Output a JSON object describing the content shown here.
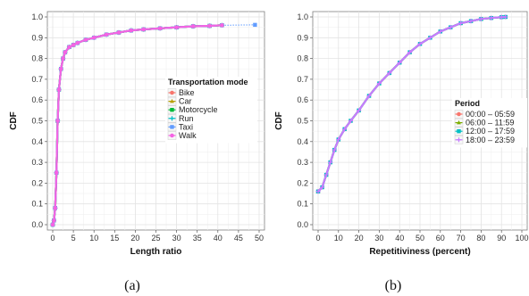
{
  "captions": [
    "(a)",
    "(b)"
  ],
  "chart_data": [
    {
      "type": "line",
      "xlabel": "Length ratio",
      "ylabel": "CDF",
      "xlim": [
        0,
        50
      ],
      "ylim": [
        0,
        1.0
      ],
      "xticks": [
        0,
        5,
        10,
        15,
        20,
        25,
        30,
        35,
        40,
        45,
        50
      ],
      "yticks": [
        0.0,
        0.1,
        0.2,
        0.3,
        0.4,
        0.5,
        0.6,
        0.7,
        0.8,
        0.9,
        1.0
      ],
      "grid": true,
      "legend": {
        "title": "Transportation mode",
        "placement": "right"
      },
      "series": [
        {
          "name": "Bike",
          "color": "#f8766d",
          "marker": "circle",
          "x": [
            0,
            0.3,
            0.6,
            0.9,
            1.2,
            1.5,
            2,
            2.5,
            3,
            4,
            5,
            6,
            8,
            10,
            13,
            16,
            19,
            22,
            26,
            30,
            34,
            38,
            41
          ],
          "y": [
            0,
            0.02,
            0.08,
            0.25,
            0.5,
            0.65,
            0.75,
            0.8,
            0.83,
            0.855,
            0.865,
            0.875,
            0.89,
            0.9,
            0.915,
            0.925,
            0.935,
            0.94,
            0.945,
            0.95,
            0.955,
            0.957,
            0.96
          ]
        },
        {
          "name": "Car",
          "color": "#b79f00",
          "marker": "triangle",
          "x": [
            0,
            0.3,
            0.6,
            0.9,
            1.2,
            1.5,
            2,
            2.5,
            3,
            4,
            5,
            6,
            8,
            10,
            13,
            16,
            19,
            22,
            26,
            30,
            34,
            38,
            41
          ],
          "y": [
            0,
            0.02,
            0.08,
            0.25,
            0.5,
            0.65,
            0.75,
            0.8,
            0.83,
            0.855,
            0.865,
            0.875,
            0.89,
            0.9,
            0.915,
            0.925,
            0.935,
            0.94,
            0.945,
            0.95,
            0.955,
            0.957,
            0.96
          ]
        },
        {
          "name": "Motorcycle",
          "color": "#00ba38",
          "marker": "square",
          "x": [
            0,
            0.3,
            0.6,
            0.9,
            1.2,
            1.5,
            2,
            2.5,
            3,
            4,
            5,
            6,
            8,
            10,
            13,
            16,
            19,
            22,
            26,
            30,
            34,
            38,
            41
          ],
          "y": [
            0,
            0.02,
            0.08,
            0.25,
            0.5,
            0.65,
            0.75,
            0.8,
            0.83,
            0.855,
            0.865,
            0.875,
            0.89,
            0.9,
            0.915,
            0.925,
            0.935,
            0.94,
            0.945,
            0.95,
            0.955,
            0.957,
            0.96
          ]
        },
        {
          "name": "Run",
          "color": "#00bfc4",
          "marker": "plus",
          "x": [
            0,
            0.3,
            0.6,
            0.9,
            1.2,
            1.5,
            2,
            2.5,
            3,
            4,
            5,
            6,
            8,
            10,
            13,
            16,
            19,
            22,
            26,
            30,
            34,
            38,
            41
          ],
          "y": [
            0,
            0.02,
            0.08,
            0.25,
            0.5,
            0.65,
            0.75,
            0.8,
            0.83,
            0.855,
            0.865,
            0.875,
            0.89,
            0.9,
            0.915,
            0.925,
            0.935,
            0.94,
            0.945,
            0.95,
            0.955,
            0.957,
            0.96
          ]
        },
        {
          "name": "Taxi",
          "color": "#619cff",
          "marker": "square",
          "x": [
            0,
            0.3,
            0.6,
            0.9,
            1.2,
            1.5,
            2,
            2.5,
            3,
            4,
            5,
            6,
            8,
            10,
            13,
            16,
            19,
            22,
            26,
            30,
            34,
            38,
            41,
            49
          ],
          "y": [
            0,
            0.02,
            0.08,
            0.25,
            0.5,
            0.65,
            0.75,
            0.8,
            0.83,
            0.855,
            0.865,
            0.875,
            0.89,
            0.9,
            0.915,
            0.925,
            0.935,
            0.94,
            0.945,
            0.95,
            0.955,
            0.957,
            0.96,
            0.962
          ]
        },
        {
          "name": "Walk",
          "color": "#f564e3",
          "marker": "circle",
          "x": [
            0,
            0.3,
            0.6,
            0.9,
            1.2,
            1.5,
            2,
            2.5,
            3,
            4,
            5,
            6,
            8,
            10,
            13,
            16,
            19,
            22,
            26,
            30,
            34,
            38,
            41
          ],
          "y": [
            0,
            0.02,
            0.08,
            0.25,
            0.5,
            0.65,
            0.75,
            0.8,
            0.83,
            0.855,
            0.865,
            0.875,
            0.89,
            0.9,
            0.915,
            0.925,
            0.935,
            0.94,
            0.945,
            0.95,
            0.955,
            0.957,
            0.96
          ]
        }
      ]
    },
    {
      "type": "line",
      "xlabel": "Repetitiviness (percent)",
      "ylabel": "CDF",
      "xlim": [
        0,
        100
      ],
      "ylim": [
        0,
        1.0
      ],
      "xticks": [
        0,
        10,
        20,
        30,
        40,
        50,
        60,
        70,
        80,
        90,
        100
      ],
      "yticks": [
        0.0,
        0.1,
        0.2,
        0.3,
        0.4,
        0.5,
        0.6,
        0.7,
        0.8,
        0.9,
        1.0
      ],
      "grid": true,
      "legend": {
        "title": "Period",
        "placement": "right"
      },
      "series": [
        {
          "name": "00:00 – 05:59",
          "color": "#f8766d",
          "marker": "circle",
          "x": [
            0,
            2,
            4,
            6,
            8,
            10,
            13,
            16,
            20,
            25,
            30,
            35,
            40,
            45,
            50,
            55,
            60,
            65,
            70,
            75,
            80,
            85,
            90,
            92
          ],
          "y": [
            0.16,
            0.18,
            0.24,
            0.3,
            0.36,
            0.41,
            0.46,
            0.5,
            0.55,
            0.62,
            0.68,
            0.73,
            0.78,
            0.83,
            0.87,
            0.9,
            0.93,
            0.95,
            0.97,
            0.98,
            0.99,
            0.995,
            0.999,
            1.0
          ]
        },
        {
          "name": "06:00 – 11:59",
          "color": "#7cae00",
          "marker": "triangle",
          "x": [
            0,
            2,
            4,
            6,
            8,
            10,
            13,
            16,
            20,
            25,
            30,
            35,
            40,
            45,
            50,
            55,
            60,
            65,
            70,
            75,
            80,
            85,
            90,
            92
          ],
          "y": [
            0.16,
            0.18,
            0.24,
            0.3,
            0.36,
            0.41,
            0.46,
            0.5,
            0.55,
            0.62,
            0.68,
            0.73,
            0.78,
            0.83,
            0.87,
            0.9,
            0.93,
            0.95,
            0.97,
            0.98,
            0.99,
            0.995,
            0.999,
            1.0
          ]
        },
        {
          "name": "12:00 – 17:59",
          "color": "#00bfc4",
          "marker": "square",
          "x": [
            0,
            2,
            4,
            6,
            8,
            10,
            13,
            16,
            20,
            25,
            30,
            35,
            40,
            45,
            50,
            55,
            60,
            65,
            70,
            75,
            80,
            85,
            90,
            92
          ],
          "y": [
            0.16,
            0.18,
            0.24,
            0.3,
            0.36,
            0.41,
            0.46,
            0.5,
            0.55,
            0.62,
            0.68,
            0.73,
            0.78,
            0.83,
            0.87,
            0.9,
            0.93,
            0.95,
            0.97,
            0.98,
            0.99,
            0.995,
            0.999,
            1.0
          ]
        },
        {
          "name": "18:00 – 23:59",
          "color": "#c77cff",
          "marker": "plus",
          "x": [
            0,
            2,
            4,
            6,
            8,
            10,
            13,
            16,
            20,
            25,
            30,
            35,
            40,
            45,
            50,
            55,
            60,
            65,
            70,
            75,
            80,
            85,
            90,
            92
          ],
          "y": [
            0.16,
            0.18,
            0.24,
            0.3,
            0.36,
            0.41,
            0.46,
            0.5,
            0.55,
            0.62,
            0.68,
            0.73,
            0.78,
            0.83,
            0.87,
            0.9,
            0.93,
            0.95,
            0.97,
            0.98,
            0.99,
            0.995,
            0.999,
            1.0
          ]
        }
      ]
    }
  ]
}
